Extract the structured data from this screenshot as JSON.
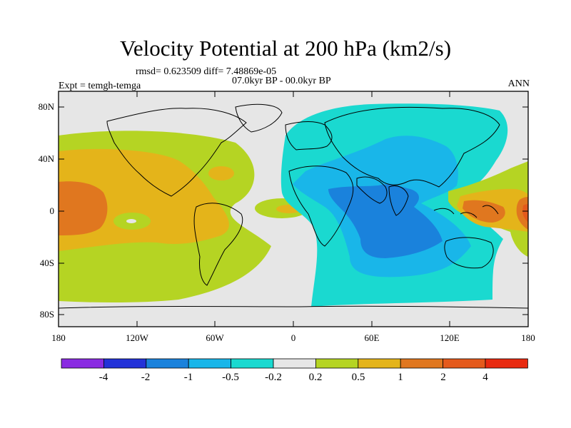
{
  "title": "Velocity Potential at 200 hPa (km2/s)",
  "stats": "rmsd= 0.623509 diff= 7.48869e-05",
  "period": "07.0kyr BP - 00.0kyr BP",
  "experiment": "Expt = temgh-temga",
  "season": "ANN",
  "lat_labels": [
    "80N",
    "40N",
    "0",
    "40S",
    "80S"
  ],
  "lon_labels": [
    "180",
    "120W",
    "60W",
    "0",
    "60E",
    "120E",
    "180"
  ],
  "colorbar": {
    "labels": [
      "-4",
      "-2",
      "-1",
      "-0.5",
      "-0.2",
      "0.2",
      "0.5",
      "1",
      "2",
      "4"
    ],
    "colors": [
      "#8a2be2",
      "#2332d8",
      "#1a82dc",
      "#19b6e9",
      "#1ad9d0",
      "#e6e6e6",
      "#b5d423",
      "#e4b41a",
      "#e0771f",
      "#e45a1c",
      "#e82a10"
    ]
  },
  "map_colors": {
    "background": "#e6e6e6",
    "c_m1": "#1a82dc",
    "c_m05": "#19b6e9",
    "c_m02": "#1ad9d0",
    "c_p02": "#b5d423",
    "c_p05": "#e4b41a",
    "c_p1": "#e0771f",
    "c_p2": "#e45a1c"
  }
}
